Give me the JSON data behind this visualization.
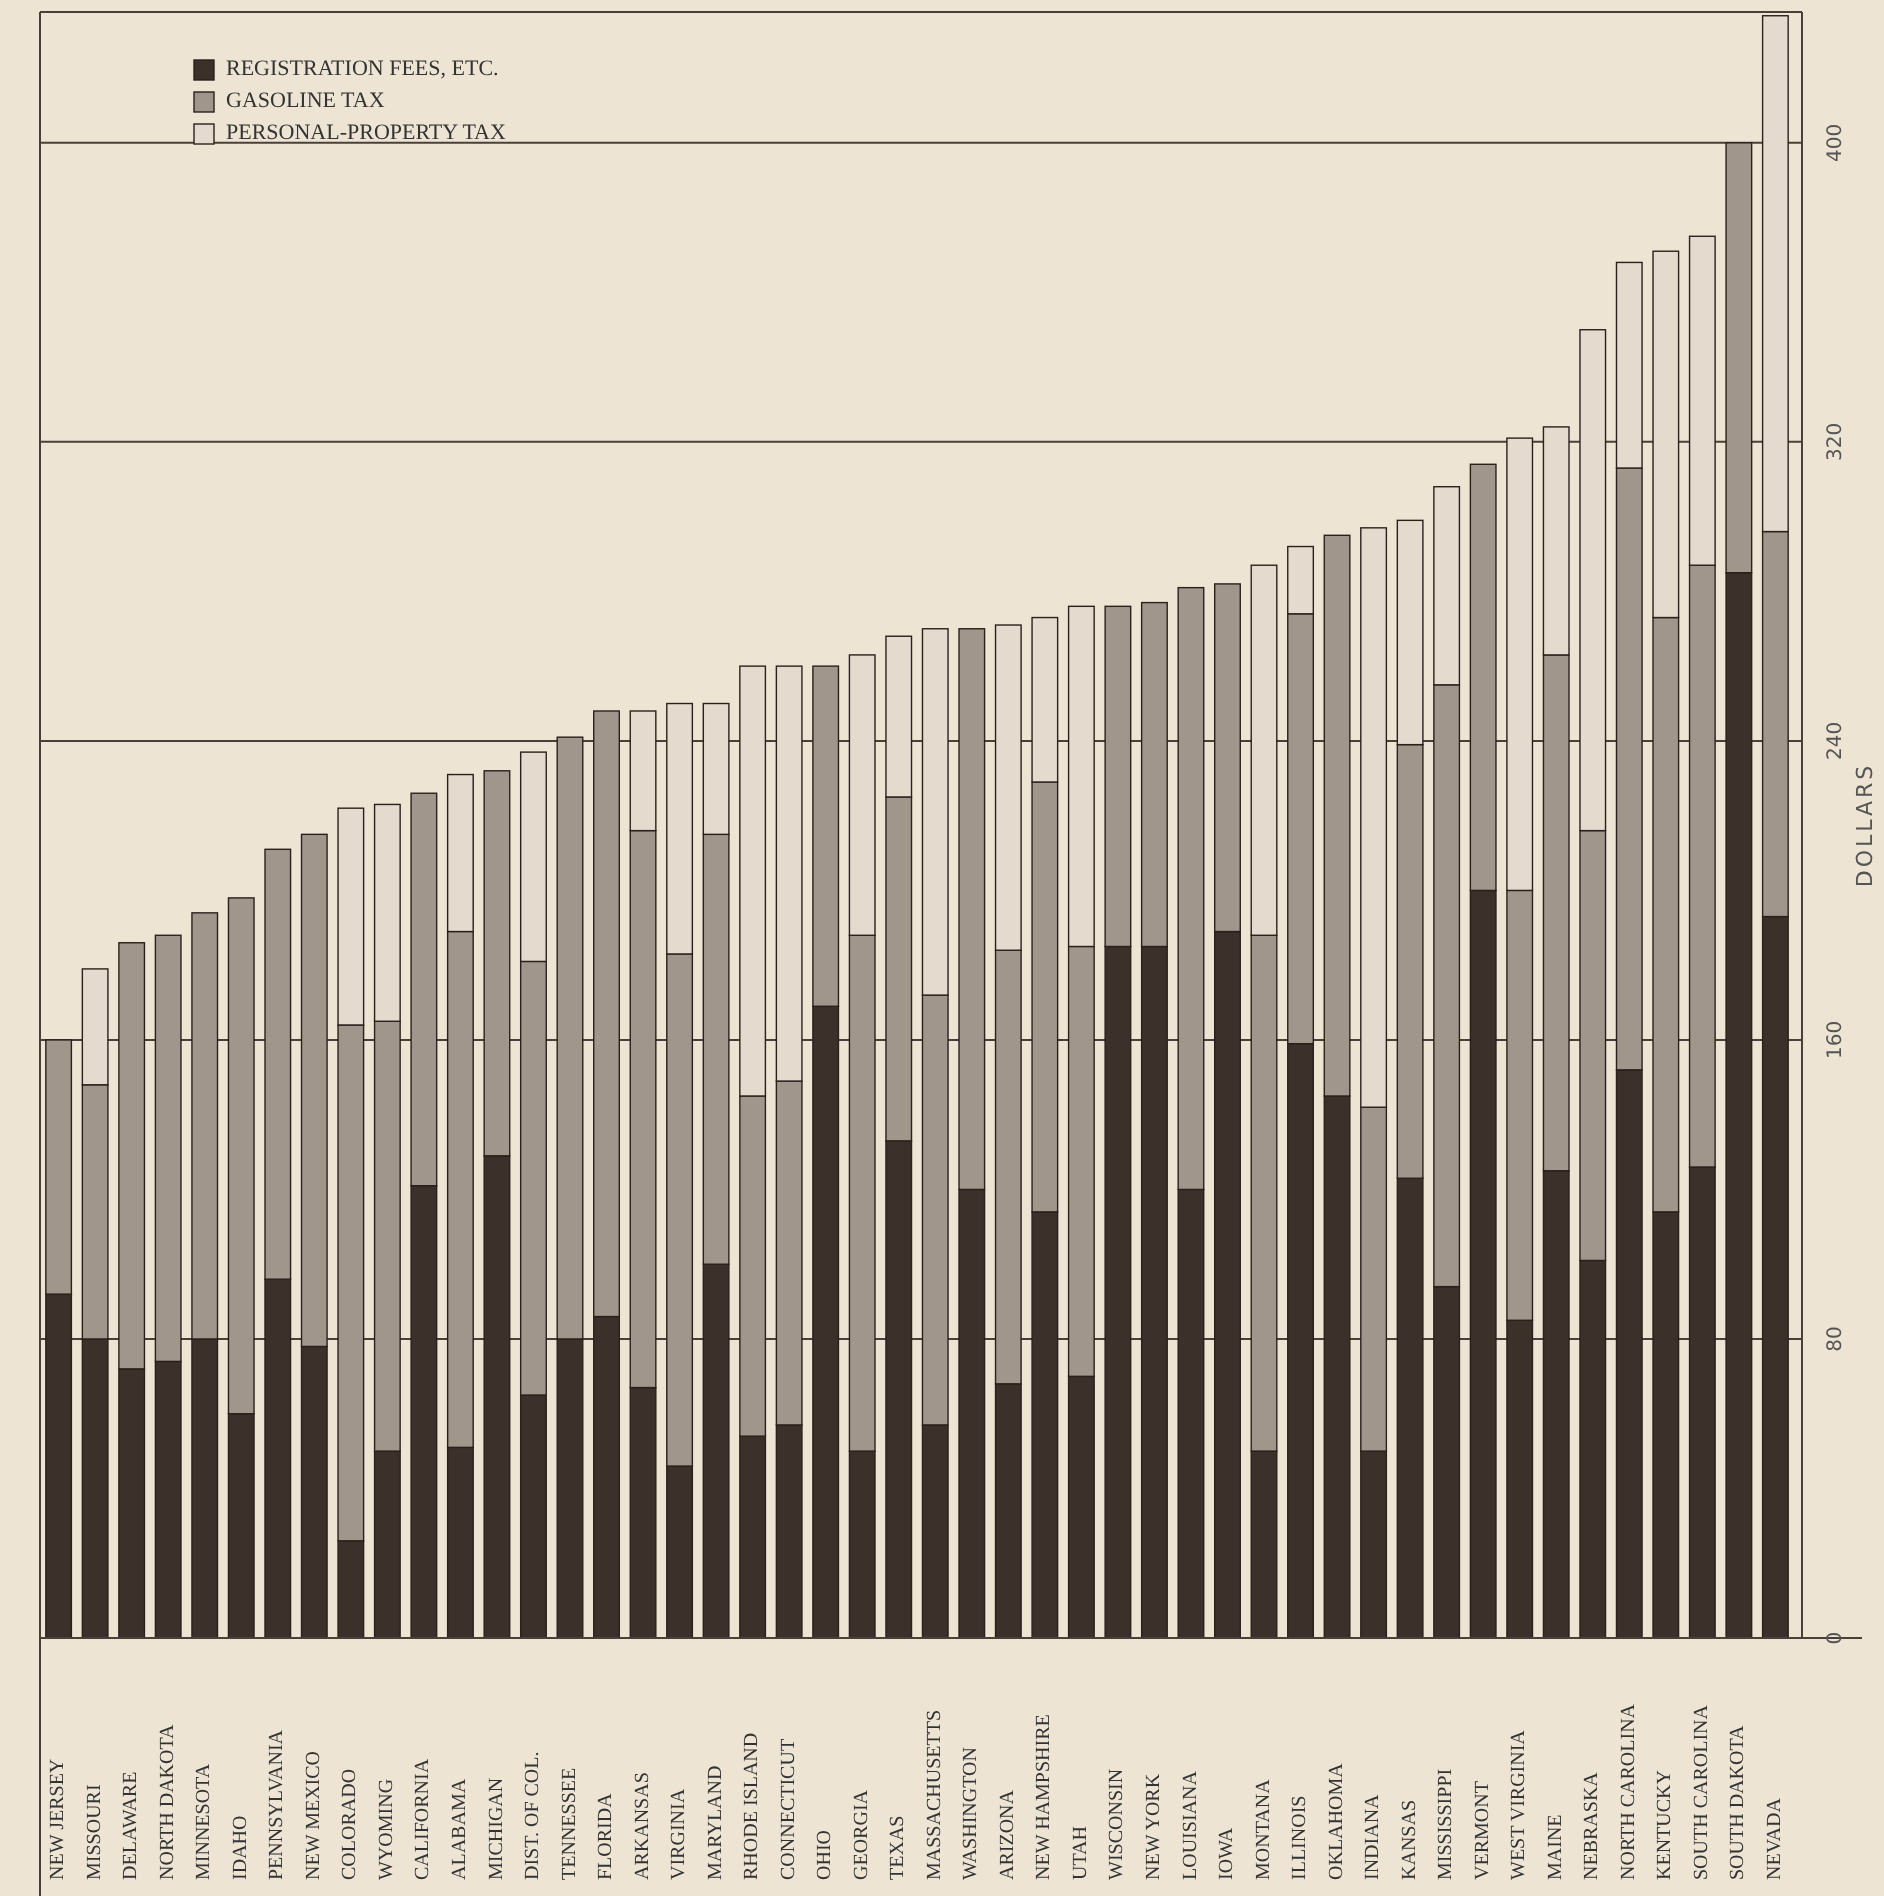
{
  "chart_data": {
    "type": "bar",
    "stacked": true,
    "xlabel": null,
    "ylabel": "DOLLARS",
    "categories": [
      "NEW JERSEY",
      "MISSOURI",
      "DELAWARE",
      "NORTH DAKOTA",
      "MINNESOTA",
      "IDAHO",
      "PENNSYLVANIA",
      "NEW MEXICO",
      "COLORADO",
      "WYOMING",
      "CALIFORNIA",
      "ALABAMA",
      "MICHIGAN",
      "DIST. OF COL.",
      "TENNESSEE",
      "FLORIDA",
      "ARKANSAS",
      "VIRGINIA",
      "MARYLAND",
      "RHODE ISLAND",
      "CONNECTICUT",
      "OHIO",
      "GEORGIA",
      "TEXAS",
      "MASSACHUSETTS",
      "WASHINGTON",
      "ARIZONA",
      "NEW HAMPSHIRE",
      "UTAH",
      "WISCONSIN",
      "NEW YORK",
      "LOUISIANA",
      "IOWA",
      "MONTANA",
      "ILLINOIS",
      "OKLAHOMA",
      "INDIANA",
      "KANSAS",
      "MISSISSIPPI",
      "VERMONT",
      "WEST VIRGINIA",
      "MAINE",
      "NEBRASKA",
      "NORTH CAROLINA",
      "KENTUCKY",
      "SOUTH CAROLINA",
      "SOUTH DAKOTA",
      "NEVADA"
    ],
    "series": [
      {
        "name": "REGISTRATION FEES, ETC.",
        "color": "#3b302a",
        "values": [
          92,
          80,
          72,
          74,
          80,
          60,
          96,
          78,
          26,
          50,
          121,
          51,
          129,
          65,
          80,
          86,
          67,
          46,
          100,
          54,
          57,
          169,
          50,
          133,
          57,
          120,
          68,
          114,
          70,
          185,
          185,
          120,
          189,
          50,
          159,
          145,
          50,
          123,
          94,
          200,
          85,
          125,
          101,
          152,
          114,
          126,
          285,
          193
        ]
      },
      {
        "name": "GASOLINE TAX",
        "color": "#a0968c",
        "values": [
          68,
          68,
          114,
          114,
          114,
          138,
          115,
          137,
          138,
          115,
          105,
          138,
          103,
          116,
          161,
          162,
          149,
          137,
          115,
          91,
          92,
          91,
          138,
          92,
          115,
          150,
          116,
          115,
          115,
          91,
          92,
          161,
          93,
          138,
          115,
          150,
          92,
          116,
          161,
          114,
          115,
          138,
          115,
          161,
          159,
          161,
          115,
          103
        ]
      },
      {
        "name": "PERSONAL-PROPERTY TAX",
        "color": "#e4dacd",
        "values": [
          0,
          31,
          0,
          0,
          0,
          0,
          0,
          0,
          58,
          58,
          0,
          42,
          0,
          56,
          0,
          0,
          32,
          67,
          35,
          115,
          111,
          0,
          75,
          43,
          98,
          0,
          87,
          44,
          91,
          0,
          0,
          0,
          0,
          99,
          18,
          0,
          155,
          60,
          53,
          0,
          121,
          61,
          134,
          55,
          98,
          88,
          0,
          138
        ]
      }
    ],
    "ylim": [
      0,
      435
    ],
    "yticks": [
      0,
      80,
      160,
      240,
      320,
      400
    ],
    "grid": "y",
    "legend": "top left"
  }
}
